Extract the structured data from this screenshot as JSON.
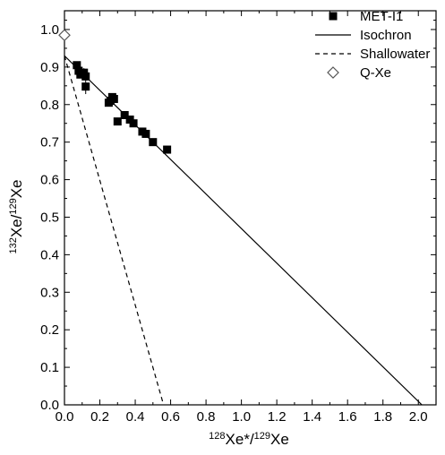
{
  "chart_data": {
    "type": "scatter",
    "xlabel": {
      "pre_sup": "128",
      "base1": "Xe*/",
      "mid_sup": "129",
      "base2": "Xe"
    },
    "ylabel": {
      "pre_sup": "132",
      "base1": "Xe/",
      "mid_sup": "129",
      "base2": "Xe"
    },
    "xlim": [
      0.0,
      2.1
    ],
    "ylim": [
      0.0,
      1.05
    ],
    "x_ticks": [
      "0.0",
      "0.2",
      "0.4",
      "0.6",
      "0.8",
      "1.0",
      "1.2",
      "1.4",
      "1.6",
      "1.8",
      "2.0"
    ],
    "y_ticks": [
      "0.0",
      "0.1",
      "0.2",
      "0.3",
      "0.4",
      "0.5",
      "0.6",
      "0.7",
      "0.8",
      "0.9",
      "1.0"
    ],
    "grid": false,
    "legend_position": "top-right",
    "series": [
      {
        "name": "MET-I1",
        "kind": "scatter",
        "marker": "filled-square",
        "color": "#000000",
        "points": [
          {
            "x": 0.07,
            "y": 0.905,
            "err": 0.01
          },
          {
            "x": 0.08,
            "y": 0.89,
            "err": 0.01
          },
          {
            "x": 0.09,
            "y": 0.88,
            "err": 0.01
          },
          {
            "x": 0.11,
            "y": 0.885,
            "err": 0.012
          },
          {
            "x": 0.12,
            "y": 0.875,
            "err": 0.01
          },
          {
            "x": 0.12,
            "y": 0.848,
            "err": 0.02
          },
          {
            "x": 0.25,
            "y": 0.805,
            "err": 0.01
          },
          {
            "x": 0.26,
            "y": 0.81,
            "err": 0.01
          },
          {
            "x": 0.27,
            "y": 0.82,
            "err": 0.01
          },
          {
            "x": 0.28,
            "y": 0.815,
            "err": 0.01
          },
          {
            "x": 0.3,
            "y": 0.755,
            "err": 0.01
          },
          {
            "x": 0.34,
            "y": 0.772,
            "err": 0.01
          },
          {
            "x": 0.37,
            "y": 0.76,
            "err": 0.01
          },
          {
            "x": 0.39,
            "y": 0.75,
            "err": 0.01
          },
          {
            "x": 0.44,
            "y": 0.728,
            "err": 0.01
          },
          {
            "x": 0.46,
            "y": 0.722,
            "err": 0.01
          },
          {
            "x": 0.5,
            "y": 0.7,
            "err": 0.01
          },
          {
            "x": 0.58,
            "y": 0.68,
            "err": 0.01
          }
        ]
      },
      {
        "name": "Isochron",
        "kind": "line",
        "dash": "solid",
        "color": "#000000",
        "x": [
          0.0,
          2.02
        ],
        "y": [
          0.93,
          0.0
        ]
      },
      {
        "name": "Shallowater",
        "kind": "line",
        "dash": "dashed",
        "color": "#000000",
        "x": [
          0.0,
          0.56
        ],
        "y": [
          0.93,
          0.0
        ]
      },
      {
        "name": "Q-Xe",
        "kind": "scatter",
        "marker": "open-diamond",
        "color": "#555555",
        "points": [
          {
            "x": 0.0,
            "y": 0.985
          }
        ]
      }
    ]
  }
}
